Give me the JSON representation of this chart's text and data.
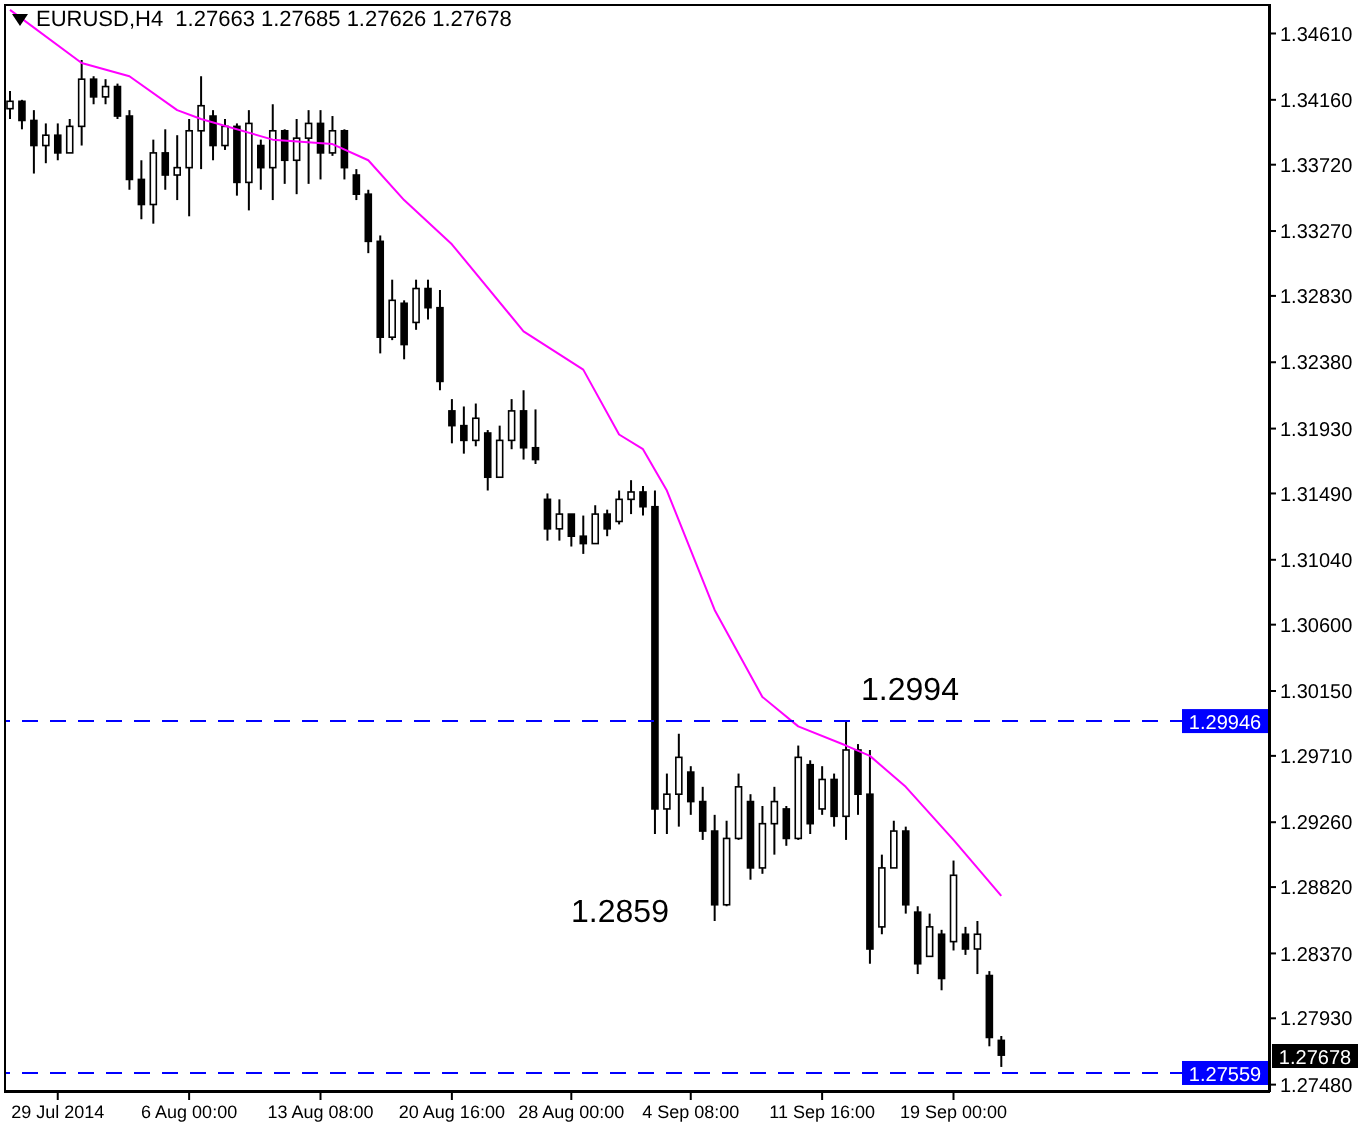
{
  "chart_data": {
    "type": "candlestick",
    "title": "EURUSD,H4  1.27663 1.27685 1.27626 1.27678",
    "color": "#000000",
    "categories": [
      null,
      null,
      null,
      null,
      "29 Jul 2014",
      null,
      null,
      null,
      null,
      null,
      null,
      null,
      null,
      null,
      null,
      "6 Aug 00:00",
      null,
      null,
      null,
      null,
      null,
      null,
      null,
      null,
      null,
      null,
      "13 Aug 08:00",
      null,
      null,
      null,
      null,
      null,
      null,
      null,
      null,
      null,
      null,
      "20 Aug 16:00",
      null,
      null,
      null,
      null,
      null,
      null,
      null,
      null,
      null,
      "28 Aug 00:00",
      null,
      null,
      null,
      null,
      null,
      null,
      null,
      null,
      null,
      "4 Sep 08:00",
      null,
      null,
      null,
      null,
      null,
      null,
      null,
      null,
      null,
      null,
      "11 Sep 16:00",
      null,
      null,
      null,
      null,
      null,
      null,
      null,
      null,
      null,
      null,
      "19 Sep 00:00",
      null,
      null,
      null,
      null,
      null,
      null,
      null,
      null,
      null,
      null,
      null,
      null,
      null,
      null,
      null,
      null,
      null,
      null,
      null,
      null,
      null,
      null,
      null,
      null,
      null,
      null
    ],
    "ohlc": [
      [
        1.341,
        1.3422,
        1.3403,
        1.3415
      ],
      [
        1.3415,
        1.3416,
        1.3396,
        1.3402
      ],
      [
        1.3402,
        1.3409,
        1.3366,
        1.3385
      ],
      [
        1.3385,
        1.34,
        1.3373,
        1.3392
      ],
      [
        1.3392,
        1.34,
        1.3375,
        1.338
      ],
      [
        1.338,
        1.3403,
        1.338,
        1.3398
      ],
      [
        1.3398,
        1.3443,
        1.3385,
        1.343
      ],
      [
        1.343,
        1.3432,
        1.3413,
        1.3418
      ],
      [
        1.3418,
        1.343,
        1.3413,
        1.3425
      ],
      [
        1.3425,
        1.3427,
        1.3403,
        1.3405
      ],
      [
        1.3405,
        1.3409,
        1.3355,
        1.3362
      ],
      [
        1.3362,
        1.3375,
        1.3335,
        1.3345
      ],
      [
        1.3345,
        1.3389,
        1.3332,
        1.338
      ],
      [
        1.338,
        1.3396,
        1.3355,
        1.3365
      ],
      [
        1.3365,
        1.3392,
        1.3348,
        1.337
      ],
      [
        1.337,
        1.3403,
        1.3337,
        1.3395
      ],
      [
        1.3395,
        1.3432,
        1.3369,
        1.3412
      ],
      [
        1.3405,
        1.3409,
        1.3375,
        1.3385
      ],
      [
        1.3385,
        1.3403,
        1.3382,
        1.3398
      ],
      [
        1.3398,
        1.34,
        1.3351,
        1.336
      ],
      [
        1.336,
        1.3409,
        1.3341,
        1.34
      ],
      [
        1.3385,
        1.3389,
        1.3355,
        1.337
      ],
      [
        1.337,
        1.3413,
        1.3348,
        1.3395
      ],
      [
        1.3395,
        1.3396,
        1.3359,
        1.3375
      ],
      [
        1.3375,
        1.3403,
        1.3352,
        1.339
      ],
      [
        1.339,
        1.3409,
        1.3359,
        1.34
      ],
      [
        1.34,
        1.3409,
        1.3362,
        1.338
      ],
      [
        1.338,
        1.3405,
        1.3378,
        1.3395
      ],
      [
        1.3395,
        1.3396,
        1.3362,
        1.337
      ],
      [
        1.3365,
        1.3369,
        1.3348,
        1.3352
      ],
      [
        1.3352,
        1.3355,
        1.3312,
        1.332
      ],
      [
        1.332,
        1.3324,
        1.3244,
        1.3255
      ],
      [
        1.3255,
        1.3294,
        1.3253,
        1.328
      ],
      [
        1.3278,
        1.328,
        1.324,
        1.325
      ],
      [
        1.3265,
        1.3294,
        1.326,
        1.3288
      ],
      [
        1.3288,
        1.3294,
        1.3267,
        1.3275
      ],
      [
        1.3275,
        1.3287,
        1.3219,
        1.3225
      ],
      [
        1.3205,
        1.3213,
        1.3183,
        1.3195
      ],
      [
        1.3195,
        1.3208,
        1.3176,
        1.3185
      ],
      [
        1.3185,
        1.321,
        1.3181,
        1.32
      ],
      [
        1.319,
        1.3192,
        1.3151,
        1.316
      ],
      [
        1.316,
        1.3195,
        1.316,
        1.3185
      ],
      [
        1.3185,
        1.3213,
        1.3179,
        1.3205
      ],
      [
        1.3205,
        1.3219,
        1.3172,
        1.318
      ],
      [
        1.318,
        1.3206,
        1.3169,
        1.3172
      ],
      [
        1.3145,
        1.3149,
        1.3117,
        1.3125
      ],
      [
        1.3125,
        1.3145,
        1.3117,
        1.3135
      ],
      [
        1.3135,
        1.3135,
        1.3113,
        1.312
      ],
      [
        1.312,
        1.3134,
        1.3108,
        1.3115
      ],
      [
        1.3115,
        1.3141,
        1.3115,
        1.3135
      ],
      [
        1.3135,
        1.3138,
        1.312,
        1.3125
      ],
      [
        1.313,
        1.3151,
        1.3128,
        1.3145
      ],
      [
        1.3145,
        1.3158,
        1.3135,
        1.315
      ],
      [
        1.315,
        1.3154,
        1.3134,
        1.314
      ],
      [
        1.314,
        1.3151,
        1.2918,
        1.2935
      ],
      [
        1.2935,
        1.2959,
        1.2918,
        1.2945
      ],
      [
        1.2945,
        1.2986,
        1.2923,
        1.297
      ],
      [
        1.296,
        1.2964,
        1.2931,
        1.294
      ],
      [
        1.294,
        1.295,
        1.2914,
        1.292
      ],
      [
        1.292,
        1.2931,
        1.2859,
        1.287
      ],
      [
        1.287,
        1.2927,
        1.2869,
        1.2915
      ],
      [
        1.2915,
        1.2959,
        1.2914,
        1.295
      ],
      [
        1.294,
        1.2945,
        1.2887,
        1.2895
      ],
      [
        1.2895,
        1.2937,
        1.2891,
        1.2925
      ],
      [
        1.2925,
        1.295,
        1.2904,
        1.294
      ],
      [
        1.2935,
        1.2937,
        1.291,
        1.2915
      ],
      [
        1.2915,
        1.2978,
        1.2914,
        1.297
      ],
      [
        1.2965,
        1.2968,
        1.2918,
        1.2925
      ],
      [
        1.2935,
        1.2964,
        1.2931,
        1.2955
      ],
      [
        1.2955,
        1.2959,
        1.2923,
        1.293
      ],
      [
        1.293,
        1.2994,
        1.2914,
        1.2975
      ],
      [
        1.2975,
        1.2979,
        1.2931,
        1.2945
      ],
      [
        1.2945,
        1.2975,
        1.283,
        1.284
      ],
      [
        1.2855,
        1.2904,
        1.285,
        1.2895
      ],
      [
        1.2895,
        1.2927,
        1.2895,
        1.292
      ],
      [
        1.292,
        1.2923,
        1.2864,
        1.287
      ],
      [
        1.2865,
        1.2869,
        1.2823,
        1.283
      ],
      [
        1.2835,
        1.2864,
        1.2835,
        1.2855
      ],
      [
        1.285,
        1.2853,
        1.2812,
        1.282
      ],
      [
        1.2845,
        1.29,
        1.2839,
        1.289
      ],
      [
        1.285,
        1.2855,
        1.2836,
        1.284
      ],
      [
        1.284,
        1.2859,
        1.2823,
        1.285
      ],
      [
        1.2822,
        1.2825,
        1.2774,
        1.278
      ],
      [
        1.2778,
        1.2781,
        1.276,
        1.2768
      ],
      null,
      null,
      null,
      null,
      null,
      null,
      null,
      null,
      null,
      null,
      null,
      null,
      null,
      null,
      null,
      null,
      null,
      null,
      null,
      null,
      null,
      null
    ],
    "series": [
      {
        "type": "line",
        "color": "#ff00ff",
        "values": [
          1.3477,
          null,
          null,
          null,
          null,
          null,
          1.3441,
          null,
          null,
          null,
          1.3432,
          null,
          null,
          null,
          1.3409,
          null,
          1.3403,
          null,
          null,
          null,
          null,
          null,
          1.3389,
          null,
          null,
          null,
          null,
          1.3386,
          null,
          null,
          1.3375,
          null,
          null,
          1.3348,
          null,
          null,
          null,
          1.3318,
          null,
          null,
          null,
          null,
          null,
          1.3259,
          null,
          null,
          null,
          null,
          1.3233,
          null,
          null,
          1.3189,
          null,
          1.3179,
          null,
          1.3151,
          null,
          null,
          null,
          1.307,
          null,
          null,
          null,
          1.3011,
          null,
          null,
          1.2991,
          null,
          null,
          null,
          1.2978,
          null,
          1.2971,
          null,
          null,
          1.295,
          null,
          null,
          null,
          1.2914,
          null,
          null,
          null,
          1.2876,
          null,
          null,
          null,
          null,
          null,
          null,
          null,
          null,
          null,
          null,
          null,
          null,
          null,
          null,
          null,
          null,
          null,
          null,
          null,
          null,
          null,
          null
        ]
      }
    ],
    "ylim": [
      1.2743,
      1.3481
    ],
    "yticks": [
      {
        "value": 1.3461,
        "label": "1.34610"
      },
      {
        "value": 1.3416,
        "label": "1.34160"
      },
      {
        "value": 1.3372,
        "label": "1.33720"
      },
      {
        "value": 1.3327,
        "label": "1.33270"
      },
      {
        "value": 1.3283,
        "label": "1.32830"
      },
      {
        "value": 1.3238,
        "label": "1.32380"
      },
      {
        "value": 1.3193,
        "label": "1.31930"
      },
      {
        "value": 1.3149,
        "label": "1.31490"
      },
      {
        "value": 1.3104,
        "label": "1.31040"
      },
      {
        "value": 1.306,
        "label": "1.30600"
      },
      {
        "value": 1.3015,
        "label": "1.30150"
      },
      {
        "value": 1.2971,
        "label": "1.29710"
      },
      {
        "value": 1.2926,
        "label": "1.29260"
      },
      {
        "value": 1.2882,
        "label": "1.28820"
      },
      {
        "value": 1.2837,
        "label": "1.28370"
      },
      {
        "value": 1.2793,
        "label": "1.27930"
      },
      {
        "value": 1.2748,
        "label": "1.27480"
      }
    ],
    "ref_lines": [
      {
        "axis": "y",
        "value": 1.29946,
        "label": "1.29946",
        "color": "#0000ff",
        "line_style": "dashed"
      },
      {
        "axis": "y",
        "value": 1.27559,
        "label": "1.27559",
        "color": "#0000ff",
        "line_style": "dashed"
      }
    ],
    "annotations": [
      {
        "text": "1.2994",
        "y": 1.2994
      },
      "1.2859",
      "1.27678"
    ]
  }
}
